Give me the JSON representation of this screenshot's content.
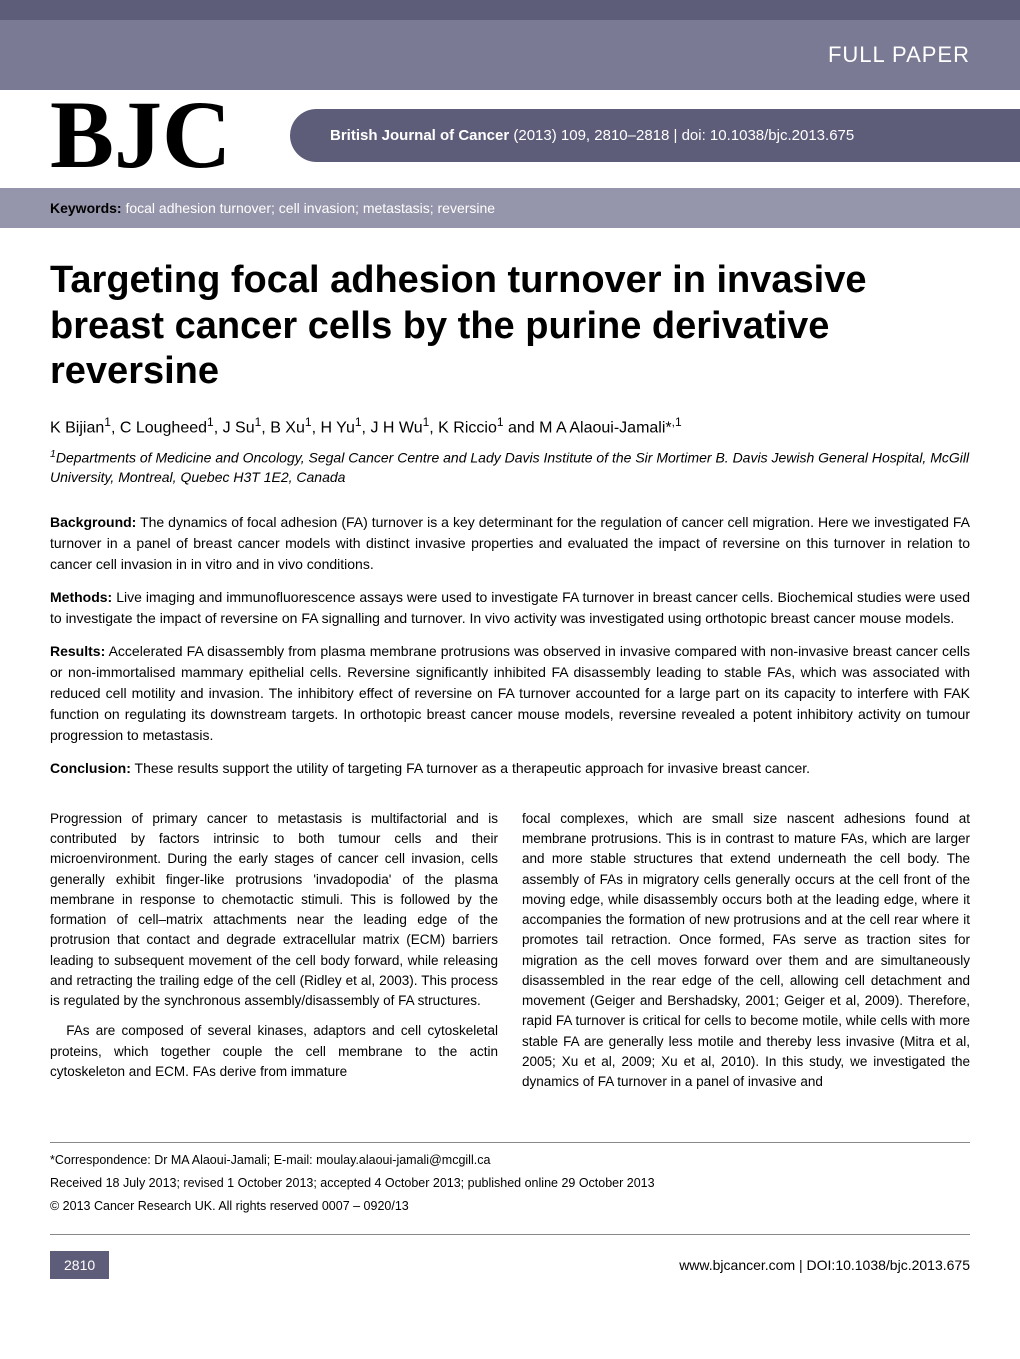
{
  "banner": {
    "full_paper": "FULL PAPER"
  },
  "logo": "BJC",
  "journal_pill": {
    "bold": "British Journal of Cancer",
    "rest": " (2013) 109, 2810–2818 | doi: 10.1038/bjc.2013.675"
  },
  "keywords": {
    "label": "Keywords:",
    "text": " focal adhesion turnover; cell invasion; metastasis; reversine"
  },
  "title": "Targeting focal adhesion turnover in invasive breast cancer cells by the purine derivative reversine",
  "authors_html": "K Bijian<sup>1</sup>, C Lougheed<sup>1</sup>, J Su<sup>1</sup>, B Xu<sup>1</sup>, H Yu<sup>1</sup>, J H Wu<sup>1</sup>, K Riccio<sup>1</sup> and M A Alaoui-Jamali*<sup>,1</sup>",
  "affiliation_html": "<sup>1</sup>Departments of Medicine and Oncology, Segal Cancer Centre and Lady Davis Institute of the Sir Mortimer B. Davis Jewish General Hospital, McGill University, Montreal, Quebec H3T 1E2, Canada",
  "abstract": {
    "background": {
      "label": "Background:",
      "text": " The dynamics of focal adhesion (FA) turnover is a key determinant for the regulation of cancer cell migration. Here we investigated FA turnover in a panel of breast cancer models with distinct invasive properties and evaluated the impact of reversine on this turnover in relation to cancer cell invasion in in vitro and in vivo conditions."
    },
    "methods": {
      "label": "Methods:",
      "text": " Live imaging and immunofluorescence assays were used to investigate FA turnover in breast cancer cells. Biochemical studies were used to investigate the impact of reversine on FA signalling and turnover. In vivo activity was investigated using orthotopic breast cancer mouse models."
    },
    "results": {
      "label": "Results:",
      "text": " Accelerated FA disassembly from plasma membrane protrusions was observed in invasive compared with non-invasive breast cancer cells or non-immortalised mammary epithelial cells. Reversine significantly inhibited FA disassembly leading to stable FAs, which was associated with reduced cell motility and invasion. The inhibitory effect of reversine on FA turnover accounted for a large part on its capacity to interfere with FAK function on regulating its downstream targets. In orthotopic breast cancer mouse models, reversine revealed a potent inhibitory activity on tumour progression to metastasis."
    },
    "conclusion": {
      "label": "Conclusion:",
      "text": " These results support the utility of targeting FA turnover as a therapeutic approach for invasive breast cancer."
    }
  },
  "body": {
    "left": {
      "p1": "Progression of primary cancer to metastasis is multifactorial and is contributed by factors intrinsic to both tumour cells and their microenvironment. During the early stages of cancer cell invasion, cells generally exhibit finger-like protrusions 'invadopodia' of the plasma membrane in response to chemotactic stimuli. This is followed by the formation of cell–matrix attachments near the leading edge of the protrusion that contact and degrade extracellular matrix (ECM) barriers leading to subsequent movement of the cell body forward, while releasing and retracting the trailing edge of the cell (Ridley et al, 2003). This process is regulated by the synchronous assembly/disassembly of FA structures.",
      "p2": "FAs are composed of several kinases, adaptors and cell cytoskeletal proteins, which together couple the cell membrane to the actin cytoskeleton and ECM. FAs derive from immature"
    },
    "right": {
      "p1": "focal complexes, which are small size nascent adhesions found at membrane protrusions. This is in contrast to mature FAs, which are larger and more stable structures that extend underneath the cell body. The assembly of FAs in migratory cells generally occurs at the cell front of the moving edge, while disassembly occurs both at the leading edge, where it accompanies the formation of new protrusions and at the cell rear where it promotes tail retraction. Once formed, FAs serve as traction sites for migration as the cell moves forward over them and are simultaneously disassembled in the rear edge of the cell, allowing cell detachment and movement (Geiger and Bershadsky, 2001; Geiger et al, 2009). Therefore, rapid FA turnover is critical for cells to become motile, while cells with more stable FA are generally less motile and thereby less invasive (Mitra et al, 2005; Xu et al, 2009; Xu et al, 2010). In this study, we investigated the dynamics of FA turnover in a panel of invasive and"
    }
  },
  "footer": {
    "correspondence": "*Correspondence: Dr MA Alaoui-Jamali; E-mail: moulay.alaoui-jamali@mcgill.ca",
    "received": "Received 18 July 2013; revised 1 October 2013; accepted 4 October 2013; published online 29 October 2013",
    "copyright": "© 2013 Cancer Research UK. All rights reserved 0007 – 0920/13"
  },
  "page_footer": {
    "page_num": "2810",
    "url": "www.bjcancer.com | DOI:10.1038/bjc.2013.675"
  },
  "colors": {
    "header_top": "#5d5d7a",
    "banner": "#7a7a95",
    "pill": "#5d5d7a",
    "keywords_bar": "#9595ab",
    "page_num_bg": "#5d5d7a"
  }
}
